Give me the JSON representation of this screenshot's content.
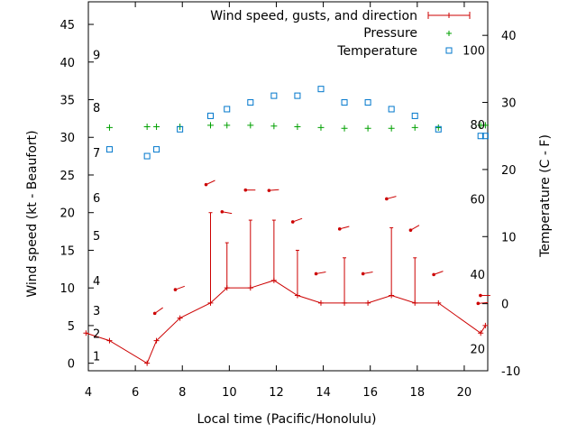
{
  "chart_data": {
    "type": "line",
    "xlabel": "Local time (Pacific/Honolulu)",
    "ylabel": "Wind speed (kt - Beaufort)",
    "y2label": "Temperature (C - F)",
    "xlim": [
      4,
      21
    ],
    "ylim": [
      -1,
      48
    ],
    "y2lim": [
      -10,
      45
    ],
    "grid": false,
    "legend_position": "top-right",
    "x_ticks": [
      4,
      6,
      8,
      10,
      12,
      14,
      16,
      18,
      20
    ],
    "y_ticks": [
      0,
      5,
      10,
      15,
      20,
      25,
      30,
      35,
      40,
      45
    ],
    "y2_ticks": [
      -10,
      0,
      10,
      20,
      30,
      40
    ],
    "beaufort_labels": [
      {
        "text": "1",
        "y": 1.0
      },
      {
        "text": "2",
        "y": 4.0
      },
      {
        "text": "3",
        "y": 7.0
      },
      {
        "text": "4",
        "y": 11.0
      },
      {
        "text": "5",
        "y": 17.0
      },
      {
        "text": "6",
        "y": 22.0
      },
      {
        "text": "7",
        "y": 28.0
      },
      {
        "text": "8",
        "y": 34.0
      },
      {
        "text": "9",
        "y": 41.0
      }
    ],
    "fahrenheit_labels": [
      {
        "text": "20",
        "y2": -6.7
      },
      {
        "text": "40",
        "y2": 4.4
      },
      {
        "text": "60",
        "y2": 15.6
      },
      {
        "text": "80",
        "y2": 26.7
      },
      {
        "text": "100",
        "y2": 37.8
      }
    ],
    "series": [
      {
        "name": "Wind speed, gusts, and direction",
        "color": "#cc0000",
        "x": [
          3.9,
          4.9,
          6.5,
          6.9,
          7.9,
          9.2,
          9.9,
          10.9,
          11.9,
          12.9,
          13.9,
          14.9,
          15.9,
          16.9,
          17.9,
          18.9,
          20.7,
          20.9
        ],
        "y": [
          4,
          3,
          0,
          3,
          6,
          8,
          10,
          10,
          11,
          9,
          8,
          8,
          8,
          9,
          8,
          8,
          4,
          5
        ],
        "gusts": [
          null,
          null,
          null,
          null,
          null,
          20,
          16,
          19,
          19,
          15,
          null,
          14,
          null,
          18,
          14,
          null,
          null,
          null
        ],
        "directions": [
          {
            "x": 7.0,
            "y": 7.0,
            "angle": 35
          },
          {
            "x": 7.9,
            "y": 10.0,
            "angle": 20
          },
          {
            "x": 9.2,
            "y": 24.0,
            "angle": 25
          },
          {
            "x": 9.9,
            "y": 20.0,
            "angle": -10
          },
          {
            "x": 10.9,
            "y": 23.0,
            "angle": 0
          },
          {
            "x": 11.9,
            "y": 23.0,
            "angle": 5
          },
          {
            "x": 12.9,
            "y": 19.0,
            "angle": 20
          },
          {
            "x": 13.9,
            "y": 12.0,
            "angle": 10
          },
          {
            "x": 14.9,
            "y": 18.0,
            "angle": 15
          },
          {
            "x": 15.9,
            "y": 12.0,
            "angle": 10
          },
          {
            "x": 16.9,
            "y": 22.0,
            "angle": 15
          },
          {
            "x": 17.9,
            "y": 18.0,
            "angle": 30
          },
          {
            "x": 18.9,
            "y": 12.0,
            "angle": 20
          },
          {
            "x": 20.8,
            "y": 8.0,
            "angle": 5
          },
          {
            "x": 20.9,
            "y": 9.0,
            "angle": 0
          }
        ]
      },
      {
        "name": "Pressure",
        "color": "#00a000",
        "axis": "y",
        "x": [
          4.9,
          6.5,
          6.9,
          7.9,
          9.2,
          9.9,
          10.9,
          11.9,
          12.9,
          13.9,
          14.9,
          15.9,
          16.9,
          17.9,
          18.9,
          20.7,
          20.9
        ],
        "y": [
          31.3,
          31.4,
          31.4,
          31.4,
          31.6,
          31.6,
          31.6,
          31.5,
          31.4,
          31.3,
          31.2,
          31.2,
          31.2,
          31.3,
          31.3,
          31.6,
          31.6
        ]
      },
      {
        "name": "Temperature",
        "color": "#0077cc",
        "axis": "y2",
        "x": [
          4.9,
          6.5,
          6.9,
          7.9,
          9.2,
          9.9,
          10.9,
          11.9,
          12.9,
          13.9,
          14.9,
          15.9,
          16.9,
          17.9,
          18.9,
          20.7,
          20.9
        ],
        "y": [
          23,
          22,
          23,
          26,
          28,
          29,
          30,
          31,
          31,
          32,
          30,
          30,
          29,
          28,
          26,
          25,
          25
        ]
      }
    ]
  }
}
